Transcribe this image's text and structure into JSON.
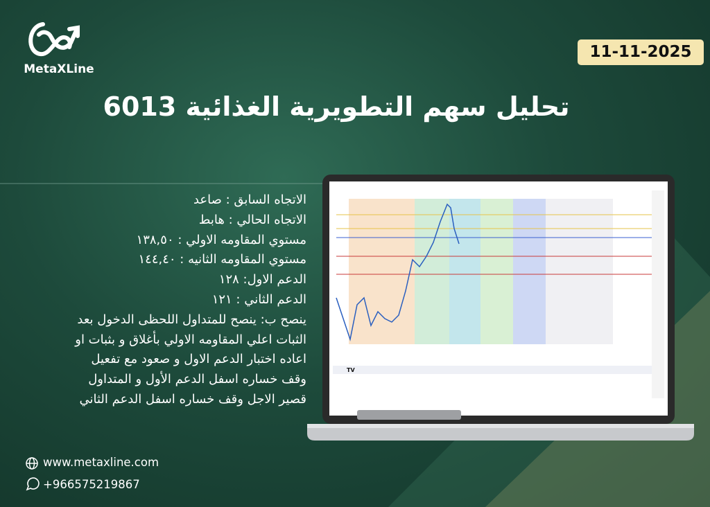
{
  "brand": "MetaXLine",
  "date": "11-11-2025",
  "title": "تحليل سهم التطويرية الغذائية 6013",
  "analysis": {
    "lines": [
      "الاتجاه السابق : صاعد",
      "الاتجاه الحالي : هابط",
      "مستوي المقاومه الاولي : ١٣٨,٥٠",
      "مستوي المقاومه الثانيه : ١٤٤,٤٠",
      "الدعم الاول: ١٢٨",
      "الدعم الثاني : ١٢١",
      "ينصح ب: ينصح للمتداول اللحظى الدخول بعد",
      "الثبات اعلي المقاومه الاولي بأغلاق و بثبات او",
      "اعاده اختبار الدعم الاول و صعود مع تفعيل",
      "وقف خساره اسفل الدعم الأول و المتداول",
      "قصير الاجل وقف خساره اسفل الدعم الثاني"
    ]
  },
  "contact": {
    "website": "www.metaxline.com",
    "phone": "+966575219867"
  }
}
